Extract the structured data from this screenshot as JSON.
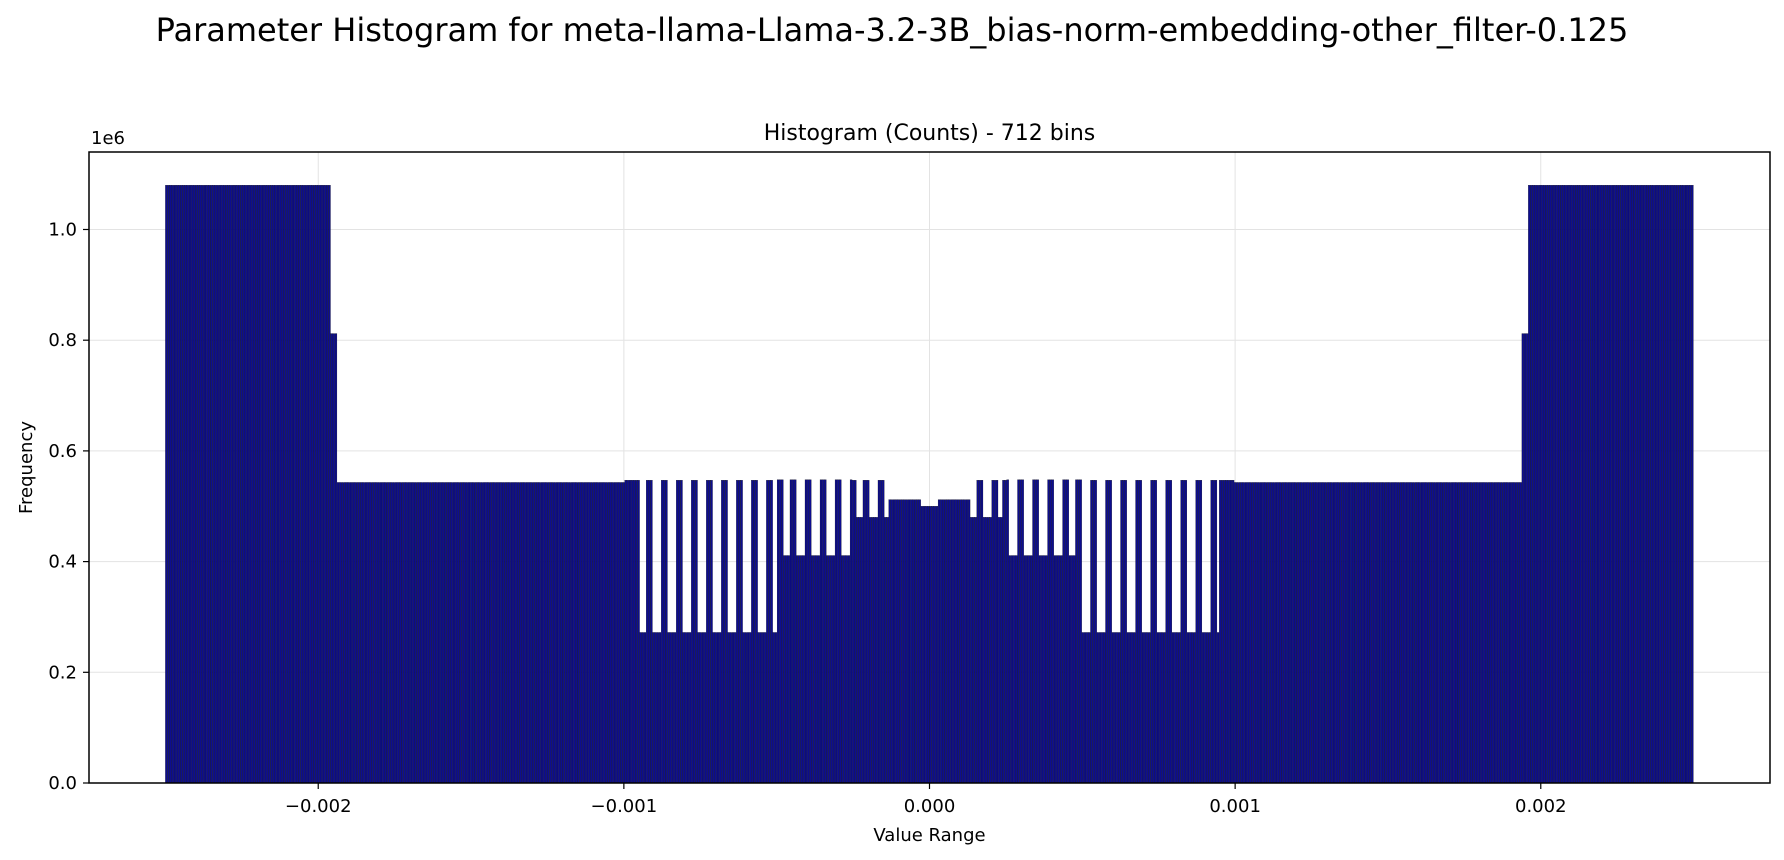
{
  "suptitle": "Parameter Histogram for meta-llama-Llama-3.2-3B_bias-norm-embedding-other_filter-0.125",
  "chart_data": {
    "type": "bar",
    "title": "Histogram (Counts) - 712 bins",
    "xlabel": "Value Range",
    "ylabel": "Frequency",
    "y_offset_label": "1e6",
    "xlim": [
      -0.00275,
      0.00275
    ],
    "ylim": [
      0,
      1140000
    ],
    "grid": true,
    "bar_color": "#0d0d8f",
    "bar_edge_color": "#000000",
    "bin_count": 712,
    "value_range": [
      -0.0025,
      0.0025
    ],
    "x_ticks": [
      -0.002,
      -0.001,
      0.0,
      0.001,
      0.002
    ],
    "x_tick_labels": [
      "−0.002",
      "−0.001",
      "0.000",
      "0.001",
      "0.002"
    ],
    "y_ticks": [
      0,
      200000,
      400000,
      600000,
      800000,
      1000000
    ],
    "y_tick_labels": [
      "0.0",
      "0.2",
      "0.4",
      "0.6",
      "0.8",
      "1.0"
    ],
    "segments": [
      {
        "from": -0.0025,
        "to": -0.00196,
        "value": 1080000
      },
      {
        "from": -0.00196,
        "to": -0.00194,
        "value": 812000
      },
      {
        "from": -0.00194,
        "to": -0.001,
        "value": 543000
      },
      {
        "from": -0.001,
        "to": -0.0005,
        "value": 547000
      },
      {
        "from": -0.0005,
        "to": -0.00025,
        "value": 548000
      },
      {
        "from": -0.00025,
        "to": -0.00013,
        "value": 547000
      },
      {
        "from": -0.00013,
        "to": -3e-05,
        "value": 512000
      },
      {
        "from": -3e-05,
        "to": 3e-05,
        "value": 500000
      },
      {
        "from": 3e-05,
        "to": 0.00013,
        "value": 512000
      },
      {
        "from": 0.00013,
        "to": 0.00025,
        "value": 547000
      },
      {
        "from": 0.00025,
        "to": 0.0005,
        "value": 548000
      },
      {
        "from": 0.0005,
        "to": 0.001,
        "value": 547000
      },
      {
        "from": 0.001,
        "to": 0.00194,
        "value": 543000
      },
      {
        "from": 0.00194,
        "to": 0.00196,
        "value": 812000
      },
      {
        "from": 0.00196,
        "to": 0.0025,
        "value": 1080000
      }
    ],
    "dips": [
      {
        "from": -0.00095,
        "to": -0.0005,
        "value": 272000
      },
      {
        "from": -0.00048,
        "to": -0.00026,
        "value": 411000
      },
      {
        "from": -0.00024,
        "to": -0.00013,
        "value": 480000
      },
      {
        "from": 0.00013,
        "to": 0.00024,
        "value": 480000
      },
      {
        "from": 0.00026,
        "to": 0.00048,
        "value": 411000
      },
      {
        "from": 0.0005,
        "to": 0.00095,
        "value": 272000
      }
    ]
  }
}
